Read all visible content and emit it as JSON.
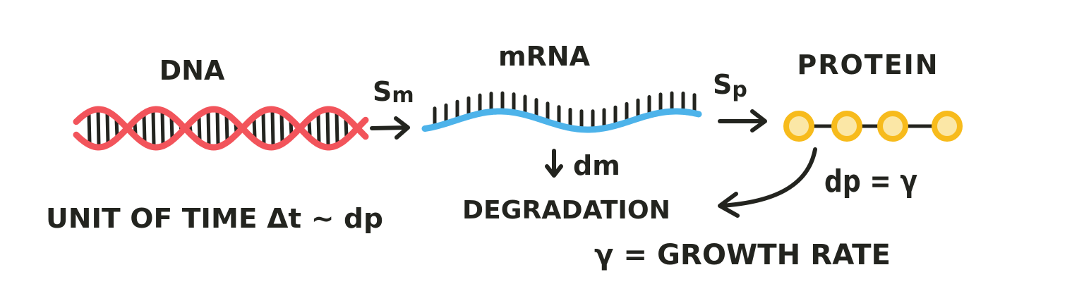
{
  "labels": {
    "dna": "DNA",
    "mrna": "mRNA",
    "protein": "PROTEIN",
    "sm": "S",
    "sm_sub": "m",
    "sp": "S",
    "sp_sub": "p",
    "dm": "dm",
    "degradation": "DEGRADATION",
    "dp_gamma": "dp = γ",
    "unit_of_time": "UNIT OF TIME Δt ~ dp",
    "gamma_growth": "γ = GROWTH RATE"
  },
  "colors": {
    "dna_strand": "#f2545b",
    "mrna_strand": "#4db3ea",
    "protein_bead_fill": "#fbe7a6",
    "protein_bead_stroke": "#f7bb1c",
    "ink": "#23241f"
  },
  "icons": {
    "dna": "double-helix-icon",
    "mrna": "single-strand-icon",
    "protein": "bead-chain-icon",
    "arrow": "hand-drawn-arrow-icon"
  },
  "protein_beads": 4
}
